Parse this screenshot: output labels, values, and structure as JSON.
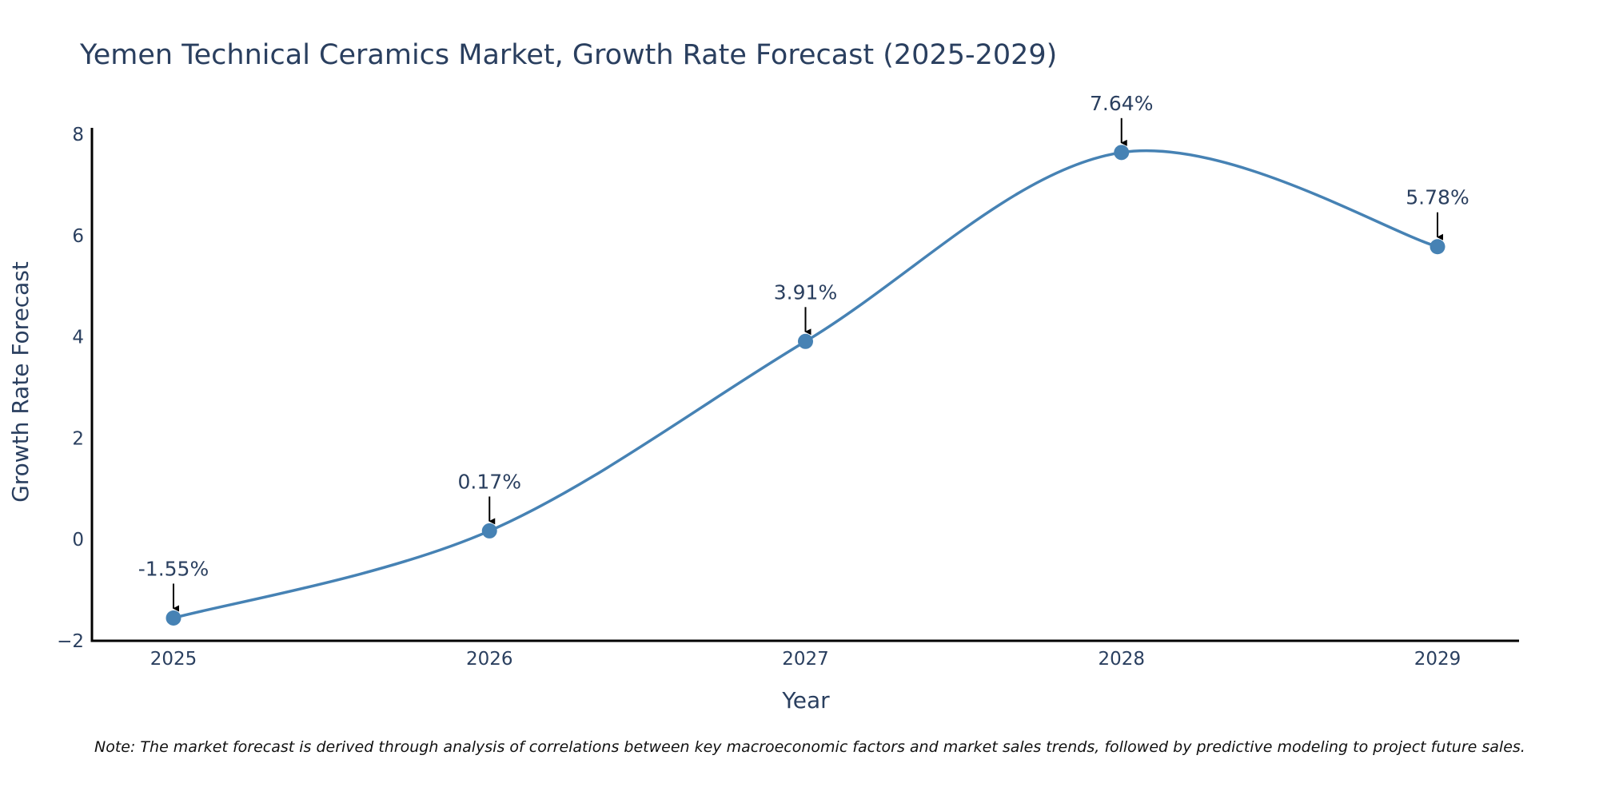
{
  "chart_data": {
    "type": "line",
    "title": "Yemen Technical Ceramics Market, Growth Rate Forecast (2025-2029)",
    "xlabel": "Year",
    "ylabel": "Growth Rate Forecast",
    "categories": [
      "2025",
      "2026",
      "2027",
      "2028",
      "2029"
    ],
    "series": [
      {
        "name": "Growth Rate Forecast",
        "values": [
          -1.55,
          0.17,
          3.91,
          7.64,
          5.78
        ]
      }
    ],
    "data_labels": [
      "-1.55%",
      "0.17%",
      "3.91%",
      "7.64%",
      "5.78%"
    ],
    "ylim": [
      -2,
      8
    ],
    "yticks": [
      -2,
      0,
      2,
      4,
      6,
      8
    ],
    "ytick_labels": [
      "−2",
      "0",
      "2",
      "4",
      "6",
      "8"
    ],
    "grid": false,
    "line_shape": "spline",
    "colors": {
      "line": "#4682b4",
      "marker": "#4682b4",
      "arrow": "#000000",
      "axis": "#000000",
      "text": "#2a3f5f"
    },
    "note": "Note: The market forecast is derived through analysis of correlations between key macroeconomic factors and market sales trends, followed by predictive modeling to project future sales."
  }
}
